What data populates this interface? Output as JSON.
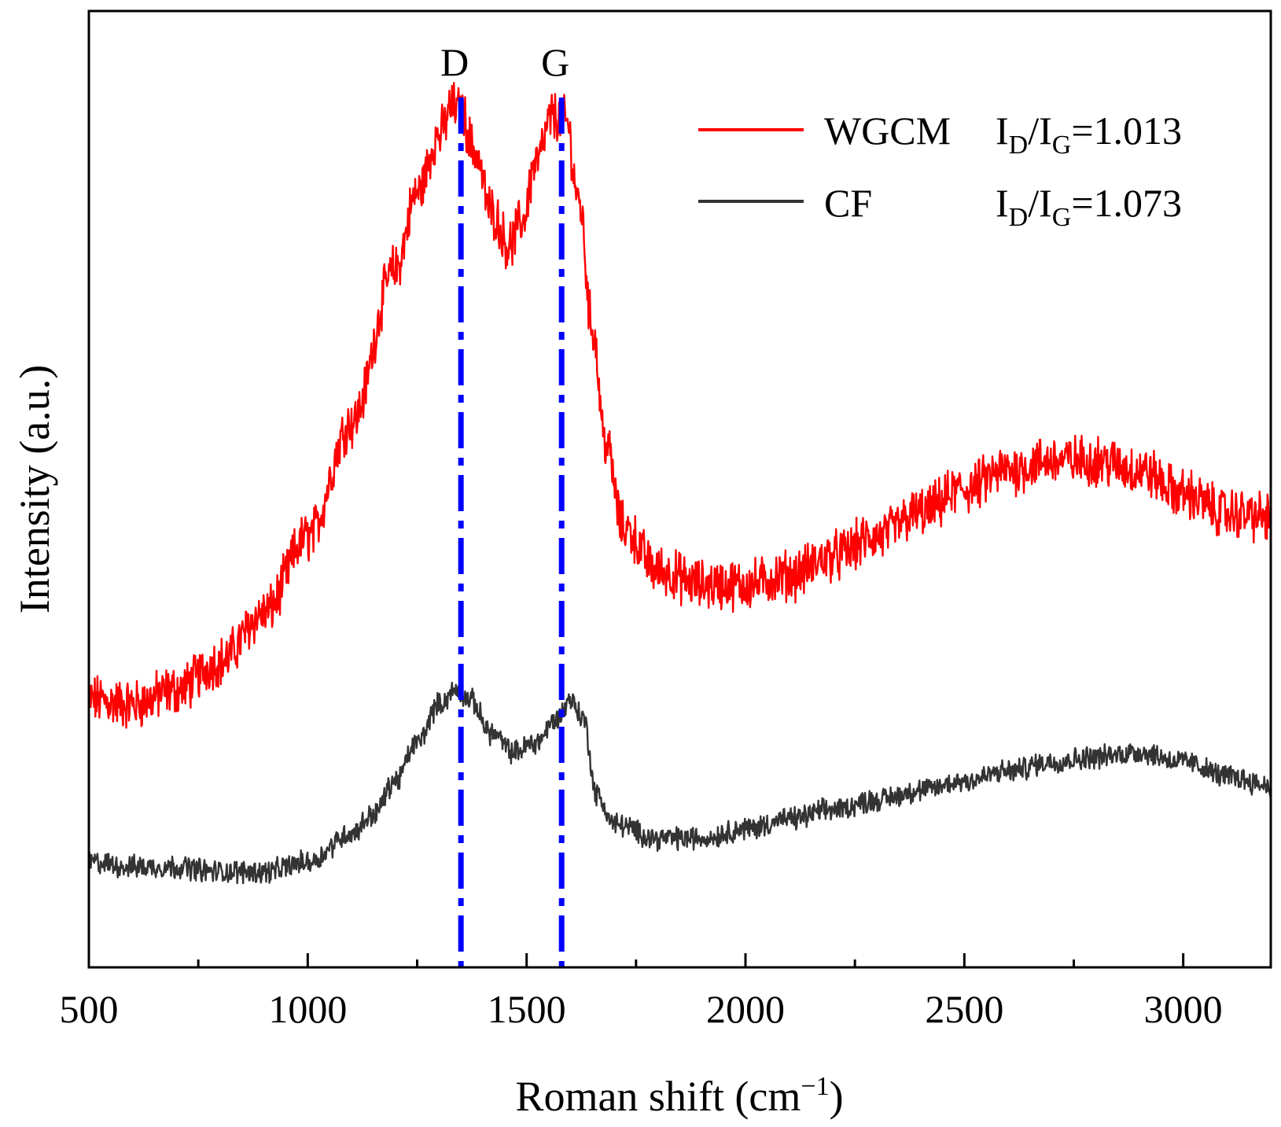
{
  "chart_data": {
    "type": "line",
    "title": "",
    "xlabel": "Roman shift (cm",
    "xlabel_superscript": "−1",
    "xlabel_close": ")",
    "ylabel": "Intensity (a.u.)",
    "xlim": [
      500,
      3200
    ],
    "ylim": [
      0,
      100
    ],
    "x_ticks": [
      500,
      1000,
      1500,
      2000,
      2500,
      3000
    ],
    "x_minor_step": 250,
    "y_ticks_shown": false,
    "grid": false,
    "legend_position": "top-right",
    "peak_markers": [
      {
        "label": "D",
        "x": 1350,
        "color": "#0000ff",
        "style": "dash-dot"
      },
      {
        "label": "G",
        "x": 1580,
        "color": "#0000ff",
        "style": "dash-dot"
      }
    ],
    "series": [
      {
        "name": "WGCM",
        "color": "#ff0000",
        "ratio_label": "I",
        "ratio_sub_1": "D",
        "ratio_slash": "/I",
        "ratio_sub_2": "G",
        "ratio_value": "=1.013",
        "noise": 2.2,
        "x": [
          500,
          600,
          700,
          800,
          900,
          1000,
          1100,
          1200,
          1250,
          1300,
          1330,
          1350,
          1380,
          1420,
          1460,
          1490,
          1520,
          1560,
          1590,
          1620,
          1650,
          1680,
          1720,
          1800,
          1900,
          2000,
          2100,
          2200,
          2300,
          2400,
          2500,
          2600,
          2700,
          2800,
          2900,
          3000,
          3100,
          3200
        ],
        "values": [
          28.0,
          27.5,
          29.0,
          32.0,
          37.0,
          45.0,
          57.0,
          73.0,
          81.0,
          87.0,
          90.0,
          89.5,
          85.5,
          79.0,
          75.5,
          78.0,
          84.0,
          89.0,
          88.5,
          80.0,
          67.0,
          55.0,
          46.0,
          41.5,
          40.0,
          40.0,
          41.0,
          43.0,
          45.0,
          47.5,
          50.0,
          52.0,
          53.0,
          53.0,
          52.0,
          49.5,
          47.5,
          47.0
        ]
      },
      {
        "name": "CF",
        "color": "#333333",
        "ratio_label": "I",
        "ratio_sub_1": "D",
        "ratio_slash": "/I",
        "ratio_sub_2": "G",
        "ratio_value": "=1.073",
        "noise": 1.0,
        "x": [
          500,
          600,
          700,
          800,
          900,
          1000,
          1100,
          1150,
          1200,
          1250,
          1300,
          1340,
          1370,
          1420,
          1470,
          1520,
          1570,
          1600,
          1630,
          1660,
          1700,
          1800,
          1900,
          2000,
          2100,
          2200,
          2300,
          2400,
          2500,
          2600,
          2700,
          2800,
          2900,
          3000,
          3100,
          3200
        ],
        "values": [
          11.0,
          10.5,
          10.5,
          10.0,
          10.0,
          11.0,
          14.0,
          16.0,
          19.5,
          23.5,
          27.5,
          29.0,
          28.0,
          24.5,
          22.5,
          23.5,
          26.0,
          28.0,
          26.0,
          18.0,
          15.0,
          13.5,
          13.5,
          14.5,
          15.5,
          16.5,
          17.5,
          18.5,
          19.5,
          20.5,
          21.5,
          22.0,
          22.5,
          21.5,
          20.0,
          19.0
        ]
      }
    ]
  }
}
